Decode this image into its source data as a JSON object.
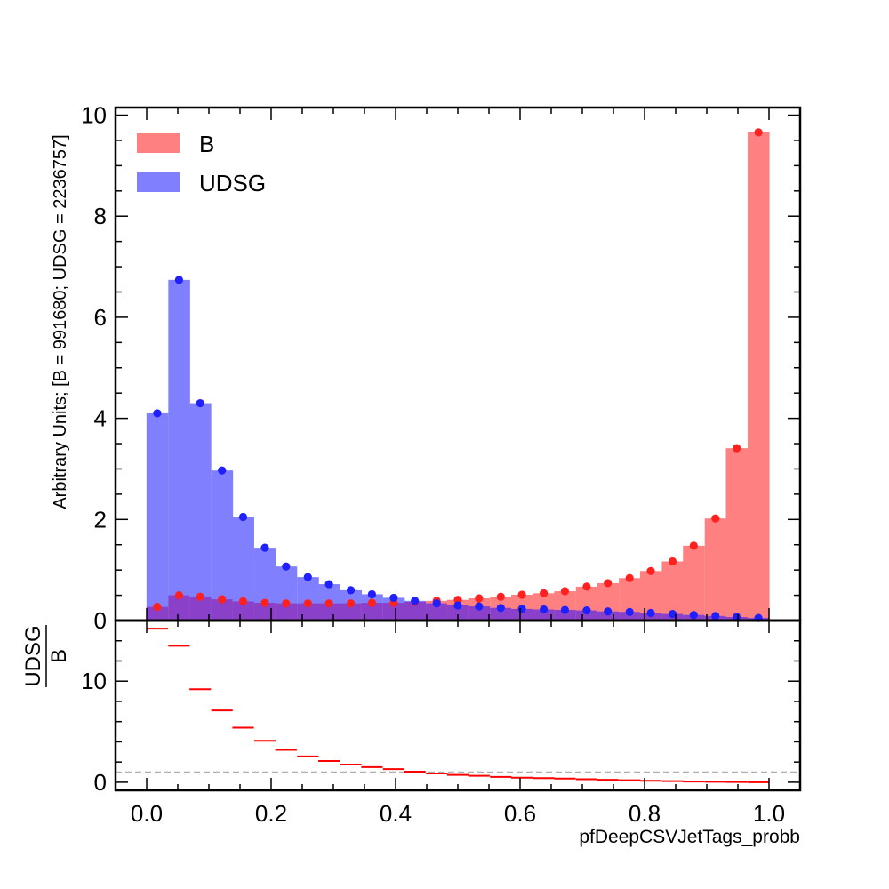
{
  "chart_data": [
    {
      "type": "bar",
      "panel": "main",
      "xlabel": "pfDeepCSVJetTags_probb",
      "ylabel": "Arbitrary Units; [B = 991680; UDSG = 2236757]",
      "xlim": [
        -0.05,
        1.05
      ],
      "ylim": [
        0,
        10.15
      ],
      "x_ticks": [
        "0.0",
        "0.2",
        "0.4",
        "0.6",
        "0.8",
        "1.0"
      ],
      "y_ticks": [
        "0",
        "2",
        "4",
        "6",
        "8",
        "10"
      ],
      "bin_width": 0.0345,
      "x": [
        0.017,
        0.052,
        0.086,
        0.121,
        0.155,
        0.19,
        0.224,
        0.259,
        0.293,
        0.328,
        0.362,
        0.397,
        0.431,
        0.466,
        0.5,
        0.534,
        0.569,
        0.603,
        0.638,
        0.672,
        0.707,
        0.741,
        0.776,
        0.81,
        0.845,
        0.879,
        0.914,
        0.948,
        0.983
      ],
      "series": [
        {
          "name": "B",
          "color": "#ff8080",
          "marker_color": "#ff2020",
          "values": [
            0.27,
            0.5,
            0.47,
            0.42,
            0.38,
            0.35,
            0.34,
            0.34,
            0.34,
            0.34,
            0.35,
            0.35,
            0.37,
            0.39,
            0.41,
            0.44,
            0.47,
            0.51,
            0.54,
            0.58,
            0.67,
            0.74,
            0.84,
            0.98,
            1.17,
            1.48,
            2.02,
            3.41,
            9.66
          ]
        },
        {
          "name": "UDSG",
          "color": "#8080ff",
          "marker_color": "#2020ff",
          "values": [
            4.1,
            6.74,
            4.3,
            2.97,
            2.05,
            1.44,
            1.07,
            0.86,
            0.72,
            0.6,
            0.52,
            0.45,
            0.39,
            0.34,
            0.3,
            0.28,
            0.25,
            0.23,
            0.22,
            0.21,
            0.2,
            0.18,
            0.17,
            0.15,
            0.13,
            0.11,
            0.09,
            0.07,
            0.05
          ]
        }
      ],
      "overlap_color": "#8a40c8",
      "legend": {
        "position": "top-left",
        "entries": [
          "B",
          "UDSG"
        ]
      },
      "grid": false
    },
    {
      "type": "line",
      "panel": "ratio",
      "ylabel_numerator": "UDSG",
      "ylabel_denominator": "B",
      "xlim": [
        -0.05,
        1.05
      ],
      "ylim": [
        -0.8,
        16
      ],
      "y_ticks": [
        "0",
        "10"
      ],
      "reference_line": 1,
      "color": "#ff0000",
      "bin_width": 0.0345,
      "x": [
        0.017,
        0.052,
        0.086,
        0.121,
        0.155,
        0.19,
        0.224,
        0.259,
        0.293,
        0.328,
        0.362,
        0.397,
        0.431,
        0.466,
        0.5,
        0.534,
        0.569,
        0.603,
        0.638,
        0.672,
        0.707,
        0.741,
        0.776,
        0.81,
        0.845,
        0.879,
        0.914,
        0.948,
        0.983
      ],
      "values": [
        15.2,
        13.5,
        9.2,
        7.1,
        5.4,
        4.1,
        3.2,
        2.55,
        2.1,
        1.75,
        1.5,
        1.3,
        1.05,
        0.87,
        0.73,
        0.64,
        0.53,
        0.45,
        0.41,
        0.36,
        0.3,
        0.24,
        0.2,
        0.15,
        0.11,
        0.074,
        0.045,
        0.021,
        0.005
      ]
    }
  ]
}
